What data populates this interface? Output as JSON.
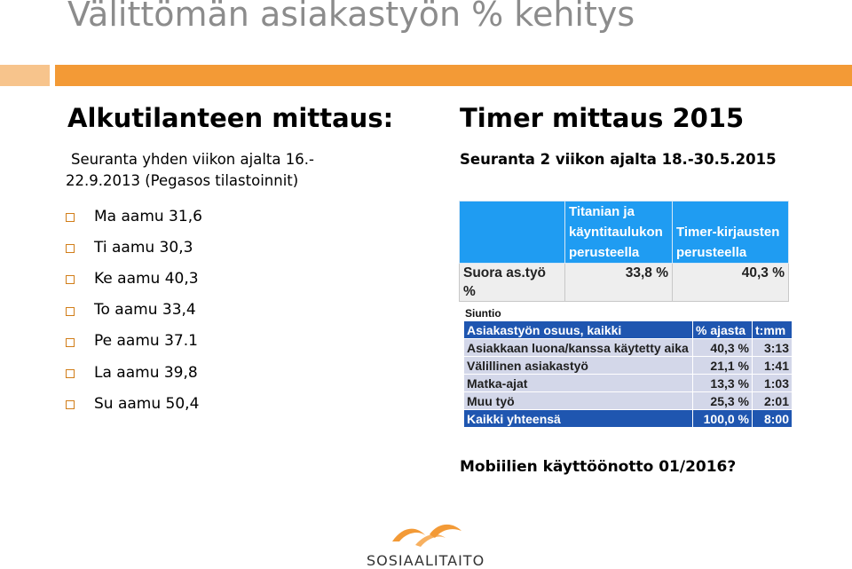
{
  "title": "Välittömän asiakastyön % kehitys",
  "left": {
    "heading": "Alkutilanteen mittaus:",
    "subtitle_line1": "Seuranta yhden viikon ajalta 16.-",
    "subtitle_line2": "22.9.2013 (Pegasos tilastoinnit)",
    "bullets": [
      "Ma aamu 31,6",
      "Ti aamu 30,3",
      "Ke aamu 40,3",
      "To aamu 33,4",
      "Pe aamu 37.1",
      "La aamu 39,8",
      "Su aamu 50,4"
    ]
  },
  "right": {
    "heading": "Timer mittaus 2015",
    "subtitle": "Seuranta 2 viikon ajalta 18.-30.5.2015",
    "table1": {
      "header_col2_line1": "Titanian ja",
      "header_col2_line2": "käyntitaulukon",
      "header_col2_line3": "perusteella",
      "header_col3_line1": "",
      "header_col3_line2": "Timer-kirjausten",
      "header_col3_line3": "perusteella",
      "row_label": "Suora as.työ %",
      "row_val1": "33,8 %",
      "row_val2": "40,3 %"
    },
    "siuntio_label": "Siuntio",
    "table2": {
      "headers": [
        "Asiakastyön osuus, kaikki",
        "% ajasta",
        "t:mm"
      ],
      "rows": [
        [
          "Asiakkaan luona/kanssa käytetty aika",
          "40,3 %",
          "3:13"
        ],
        [
          "Välillinen asiakastyö",
          "21,1 %",
          "1:41"
        ],
        [
          "Matka-ajat",
          "13,3 %",
          "1:03"
        ],
        [
          "Muu työ",
          "25,3 %",
          "2:01"
        ]
      ],
      "footer": [
        "Kaikki yhteensä",
        "100,0 %",
        "8:00"
      ]
    },
    "footer_note": "Mobiilien käyttöönotto 01/2016?"
  },
  "logo": {
    "text": "SOSIAALITAITO"
  },
  "colors": {
    "accent_orange": "#f39a36",
    "accent_orange_light": "#f7c48c",
    "table_blue": "#1f9cf2",
    "table_dark_blue": "#1f56b0"
  }
}
